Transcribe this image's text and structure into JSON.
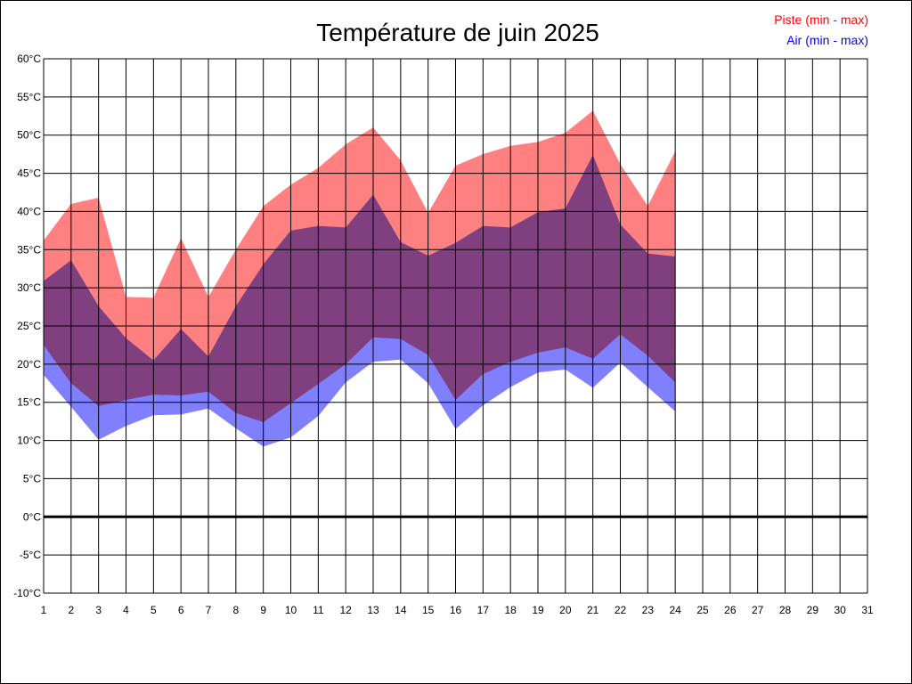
{
  "chart_data": {
    "type": "area",
    "title": "Température de juin 2025",
    "xlabel": "",
    "ylabel": "",
    "unit": "°C",
    "xlim": [
      1,
      31
    ],
    "ylim": [
      -10,
      60
    ],
    "ytick_step": 5,
    "grid": true,
    "legend_position": "top-right",
    "x_ticks": [
      "1",
      "2",
      "3",
      "4",
      "5",
      "6",
      "7",
      "8",
      "9",
      "10",
      "11",
      "12",
      "13",
      "14",
      "15",
      "16",
      "17",
      "18",
      "19",
      "20",
      "21",
      "22",
      "23",
      "24",
      "25",
      "26",
      "27",
      "28",
      "29",
      "30",
      "31"
    ],
    "x": [
      1,
      2,
      3,
      4,
      5,
      6,
      7,
      8,
      9,
      10,
      11,
      12,
      13,
      14,
      15,
      16,
      17,
      18,
      19,
      20,
      21,
      22,
      23,
      24
    ],
    "series": [
      {
        "name": "Piste (min - max)",
        "color": "#ff0000",
        "fill": "#ff8080",
        "min": [
          22.5,
          17.5,
          14.5,
          15.3,
          16.0,
          15.9,
          16.4,
          13.6,
          12.4,
          14.9,
          17.4,
          20.0,
          23.5,
          23.3,
          21.2,
          15.3,
          18.7,
          20.3,
          21.5,
          22.2,
          20.7,
          23.9,
          21.1,
          17.6
        ],
        "max": [
          36.2,
          41.0,
          41.8,
          28.8,
          28.7,
          36.5,
          28.8,
          35.0,
          40.7,
          43.5,
          45.7,
          48.8,
          51.0,
          46.7,
          39.8,
          46.0,
          47.5,
          48.6,
          49.1,
          50.3,
          53.2,
          46.2,
          40.7,
          47.9
        ]
      },
      {
        "name": "Air (min - max)",
        "color": "#0000ff",
        "fill": "#8080ff",
        "min": [
          18.6,
          14.4,
          10.1,
          11.9,
          13.3,
          13.4,
          14.2,
          11.6,
          9.2,
          10.4,
          13.2,
          17.6,
          20.3,
          20.6,
          17.5,
          11.5,
          14.6,
          17.0,
          18.9,
          19.3,
          16.9,
          20.2,
          17.0,
          13.8
        ],
        "max": [
          30.9,
          33.6,
          27.6,
          23.4,
          20.5,
          24.6,
          21.0,
          27.6,
          33.1,
          37.5,
          38.1,
          37.9,
          42.2,
          36.0,
          34.2,
          35.9,
          38.1,
          37.9,
          39.9,
          40.4,
          47.4,
          38.3,
          34.5,
          34.1
        ]
      }
    ]
  }
}
